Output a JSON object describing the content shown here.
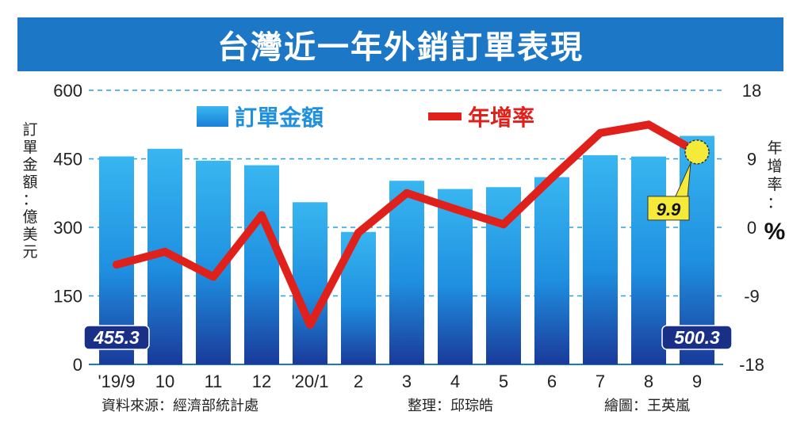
{
  "chart_data": {
    "type": "bar",
    "title": "台灣近一年外銷訂單表現",
    "categories": [
      "'19/9",
      "10",
      "11",
      "12",
      "'20/1",
      "2",
      "3",
      "4",
      "5",
      "6",
      "7",
      "8",
      "9"
    ],
    "series": [
      {
        "name": "訂單金額",
        "type": "bar",
        "axis": "left",
        "color": "#1f8fe0",
        "values": [
          455.3,
          472,
          446,
          436,
          355,
          290,
          402,
          384,
          388,
          410,
          458,
          455,
          500.3
        ]
      },
      {
        "name": "年增率",
        "type": "line",
        "axis": "right",
        "color": "#e0201b",
        "values": [
          -4.9,
          -3.2,
          -6.5,
          1.6,
          -12.8,
          -0.7,
          4.5,
          2.4,
          0.4,
          6.5,
          12.4,
          13.5,
          9.9
        ]
      }
    ],
    "y_left": {
      "label": [
        "訂",
        "單",
        "金",
        "額",
        "：",
        "億",
        "美",
        "元"
      ],
      "ticks": [
        "600",
        "450",
        "300",
        "150",
        "0"
      ],
      "ylim": [
        0,
        600
      ]
    },
    "y_right": {
      "label": [
        "年",
        "增",
        "率",
        "："
      ],
      "unit": "%",
      "ticks": [
        "18",
        "9",
        "0",
        "-9",
        "-18"
      ],
      "ylim": [
        -18,
        18
      ]
    },
    "annotations": {
      "first_bar": "455.3",
      "last_bar": "500.3",
      "last_rate": "9.9"
    },
    "grid": "horizontal dashed",
    "legend_placement": "top"
  },
  "footer": {
    "source": "資料來源：經濟部統計處",
    "editor": "整理：邱琮皓",
    "artist": "繪圖：王英嵐"
  }
}
